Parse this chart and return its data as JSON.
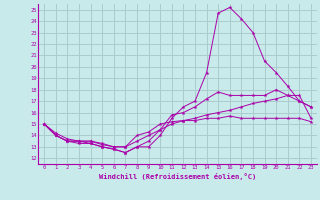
{
  "xlabel": "Windchill (Refroidissement éolien,°C)",
  "bg_color": "#c8eaea",
  "grid_color": "#aacccc",
  "line_color": "#aa00aa",
  "x_ticks": [
    0,
    1,
    2,
    3,
    4,
    5,
    6,
    7,
    8,
    9,
    10,
    11,
    12,
    13,
    14,
    15,
    16,
    17,
    18,
    19,
    20,
    21,
    22,
    23
  ],
  "y_ticks": [
    12,
    13,
    14,
    15,
    16,
    17,
    18,
    19,
    20,
    21,
    22,
    23,
    24,
    25
  ],
  "xlim": [
    -0.5,
    23.5
  ],
  "ylim": [
    11.5,
    25.5
  ],
  "curves": [
    [
      15.0,
      14.0,
      13.5,
      13.5,
      13.3,
      13.0,
      12.8,
      12.5,
      13.0,
      13.0,
      14.0,
      15.5,
      16.5,
      17.0,
      19.5,
      24.7,
      25.2,
      24.2,
      23.0,
      20.5,
      19.5,
      18.3,
      17.0,
      16.5
    ],
    [
      15.0,
      14.0,
      13.5,
      13.3,
      13.3,
      13.0,
      12.8,
      12.5,
      13.0,
      13.5,
      14.5,
      15.8,
      16.0,
      16.5,
      17.2,
      17.8,
      17.5,
      17.5,
      17.5,
      17.5,
      18.0,
      17.5,
      17.0,
      16.5
    ],
    [
      15.0,
      14.0,
      13.5,
      13.5,
      13.5,
      13.2,
      13.0,
      13.0,
      13.5,
      14.0,
      14.5,
      15.0,
      15.3,
      15.5,
      15.8,
      16.0,
      16.2,
      16.5,
      16.8,
      17.0,
      17.2,
      17.5,
      17.5,
      15.5
    ],
    [
      15.0,
      14.2,
      13.7,
      13.5,
      13.5,
      13.3,
      13.0,
      13.0,
      14.0,
      14.3,
      15.0,
      15.2,
      15.3,
      15.3,
      15.5,
      15.5,
      15.7,
      15.5,
      15.5,
      15.5,
      15.5,
      15.5,
      15.5,
      15.2
    ]
  ]
}
